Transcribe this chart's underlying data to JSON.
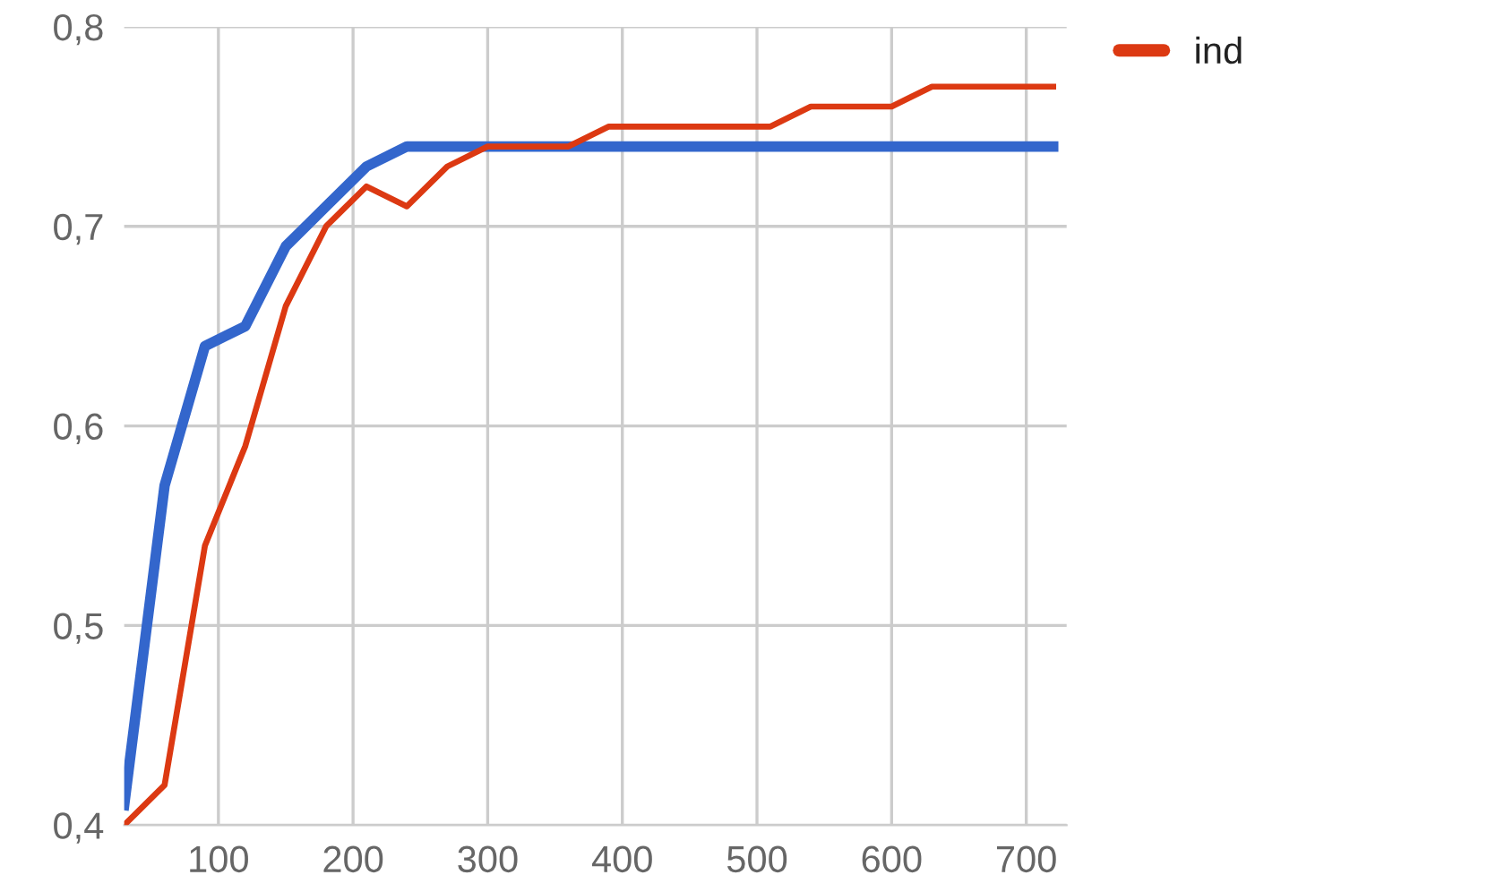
{
  "chart_data": {
    "type": "line",
    "x": [
      30,
      60,
      90,
      120,
      150,
      180,
      210,
      240,
      270,
      300,
      330,
      360,
      390,
      420,
      450,
      480,
      510,
      540,
      570,
      600,
      630,
      660,
      690,
      720
    ],
    "series": [
      {
        "color": "#3366cc",
        "values": [
          0.41,
          0.57,
          0.64,
          0.65,
          0.69,
          0.71,
          0.73,
          0.74,
          0.74,
          0.74,
          0.74,
          0.74,
          0.74,
          0.74,
          0.74,
          0.74,
          0.74,
          0.74,
          0.74,
          0.74,
          0.74,
          0.74,
          0.74,
          0.74
        ]
      },
      {
        "name": "ind",
        "color": "#dc3912",
        "values": [
          0.4,
          0.42,
          0.54,
          0.59,
          0.66,
          0.7,
          0.72,
          0.71,
          0.73,
          0.74,
          0.74,
          0.74,
          0.75,
          0.75,
          0.75,
          0.75,
          0.75,
          0.76,
          0.76,
          0.76,
          0.77,
          0.77,
          0.77,
          0.77
        ]
      }
    ],
    "xlim": [
      30,
      730
    ],
    "xticks": [
      100,
      200,
      300,
      400,
      500,
      600,
      700
    ],
    "ylim": [
      0.4,
      0.8
    ],
    "yticks": [
      {
        "value": 0.4,
        "label": "0,4"
      },
      {
        "value": 0.5,
        "label": "0,5"
      },
      {
        "value": 0.6,
        "label": "0,6"
      },
      {
        "value": 0.7,
        "label": "0,7"
      },
      {
        "value": 0.8,
        "label": "0,8"
      }
    ],
    "grid": true,
    "legend": "top right",
    "line_style": "solid",
    "marker": "none"
  }
}
